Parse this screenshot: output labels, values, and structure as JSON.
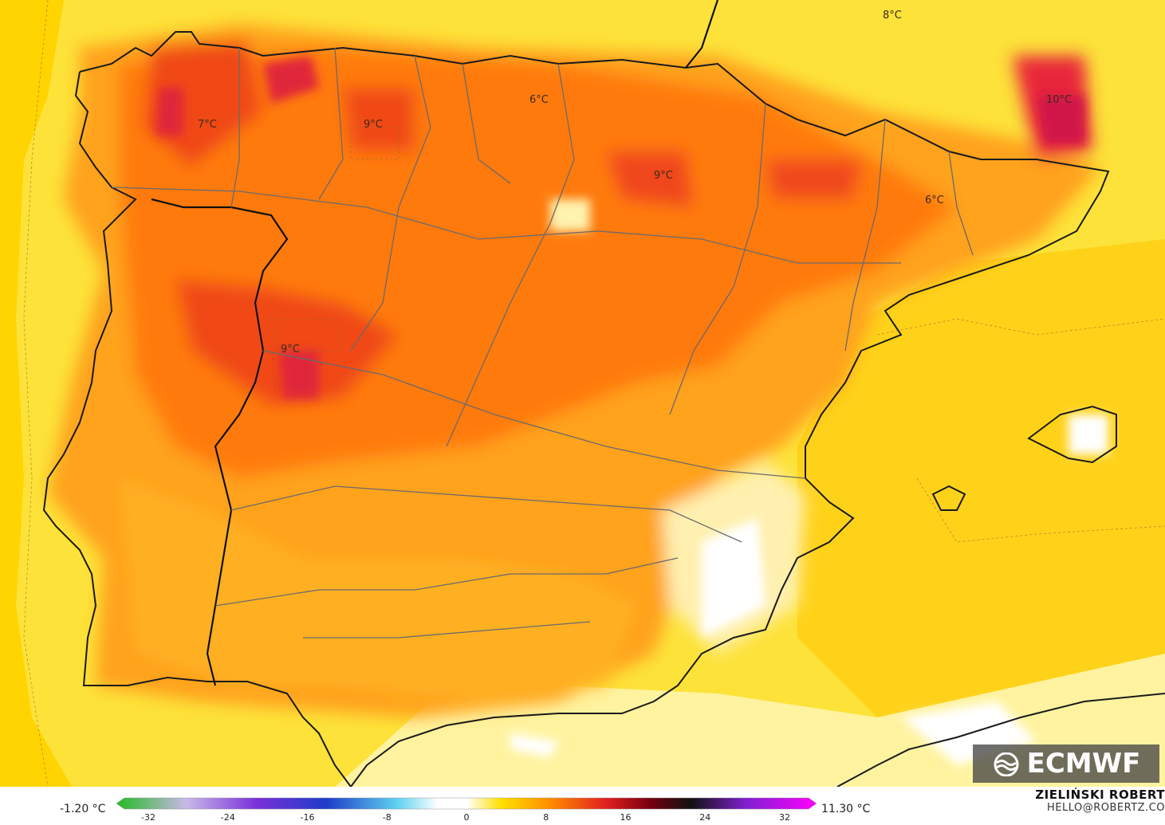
{
  "map": {
    "temperature_labels": [
      {
        "text": "8°C"
      },
      {
        "text": "10°C"
      },
      {
        "text": "7°C"
      },
      {
        "text": "9°C"
      },
      {
        "text": "6°C"
      },
      {
        "text": "9°C"
      },
      {
        "text": "6°C"
      },
      {
        "text": "9°C"
      }
    ]
  },
  "logo": {
    "text": "ECMWF"
  },
  "legend": {
    "min_label": "-1.20 °C",
    "max_label": "11.30 °C",
    "ticks": [
      "-32",
      "-24",
      "-16",
      "-8",
      "0",
      "8",
      "16",
      "24",
      "32"
    ],
    "colors": {
      "cold_green": "#22bb22",
      "pale_lavender": "#c9b8e8",
      "purple": "#7a30d8",
      "blue": "#1e3cc8",
      "cyan": "#5fd0f0",
      "white": "#ffffff",
      "yellow": "#ffe000",
      "orange": "#ff8c00",
      "red": "#e02020",
      "dark_red": "#7a0010",
      "black": "#111111",
      "violet": "#8020d0",
      "magenta": "#ff00ff"
    }
  },
  "author": {
    "name": "ZIELIŃSKI ROBERT",
    "email": "HELLO@ROBERTZ.CO"
  }
}
